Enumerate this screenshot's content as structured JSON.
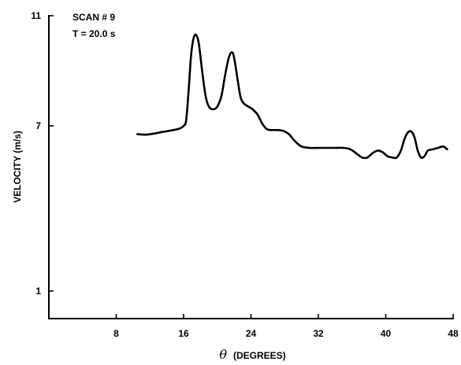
{
  "chart_data": {
    "type": "line",
    "annotations": [
      "SCAN # 9",
      "T = 20.0 s"
    ],
    "xlabel_symbol": "θ",
    "xlabel": "(DEGREES)",
    "ylabel": "VELOCITY (m/s)",
    "xlim": [
      0,
      48
    ],
    "ylim": [
      0,
      11
    ],
    "xticks": [
      "8",
      "16",
      "24",
      "32",
      "40",
      "48"
    ],
    "yticks": [
      "1",
      "7",
      "11"
    ],
    "series": [
      {
        "x": [
          10.5,
          11.5,
          12.5,
          13.5,
          14.5,
          15.5,
          16.0,
          16.3,
          16.6,
          16.9,
          17.2,
          17.5,
          17.8,
          18.2,
          18.6,
          19.0,
          19.5,
          20.0,
          20.5,
          20.9,
          21.3,
          21.6,
          21.9,
          22.2,
          22.5,
          22.8,
          23.2,
          23.7,
          24.2,
          24.8,
          25.3,
          25.8,
          26.3,
          27.0,
          27.8,
          28.5,
          29.2,
          30.0,
          31.0,
          32.0,
          33.0,
          34.0,
          35.0,
          35.8,
          36.5,
          37.2,
          37.8,
          38.4,
          39.0,
          39.6,
          40.2,
          40.8,
          41.3,
          41.8,
          42.2,
          42.6,
          43.0,
          43.4,
          43.8,
          44.2,
          44.6,
          45.0,
          45.6,
          46.2,
          46.8,
          47.3
        ],
        "y": [
          6.7,
          6.68,
          6.72,
          6.78,
          6.83,
          6.9,
          7.0,
          7.2,
          8.3,
          9.6,
          10.2,
          10.3,
          10.0,
          9.0,
          8.1,
          7.7,
          7.6,
          7.7,
          8.1,
          8.8,
          9.4,
          9.65,
          9.6,
          9.1,
          8.5,
          8.0,
          7.8,
          7.7,
          7.6,
          7.4,
          7.1,
          6.9,
          6.85,
          6.85,
          6.82,
          6.7,
          6.45,
          6.25,
          6.2,
          6.2,
          6.2,
          6.2,
          6.2,
          6.15,
          6.0,
          5.85,
          5.85,
          6.0,
          6.1,
          6.05,
          5.9,
          5.85,
          5.85,
          6.1,
          6.5,
          6.75,
          6.8,
          6.6,
          6.1,
          5.85,
          5.9,
          6.1,
          6.15,
          6.2,
          6.25,
          6.15
        ]
      }
    ]
  }
}
